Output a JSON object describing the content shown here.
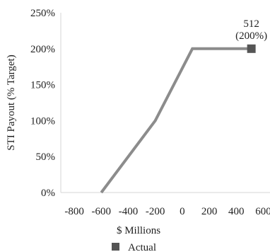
{
  "chart_data": {
    "type": "line",
    "title": "",
    "xlabel": "$ Millions",
    "ylabel": "STI Payout (% Target)",
    "xlim": [
      -900,
      650
    ],
    "ylim": [
      0,
      250
    ],
    "x_ticks": [
      -800,
      -600,
      -400,
      -200,
      0,
      200,
      400,
      600
    ],
    "x_tick_labels": [
      "-800",
      "-600",
      "-400",
      "-200",
      "0",
      "200",
      "400",
      "600"
    ],
    "y_ticks": [
      0,
      50,
      100,
      150,
      200,
      250
    ],
    "y_tick_labels": [
      "0%",
      "50%",
      "100%",
      "150%",
      "200%",
      "250%"
    ],
    "grid": false,
    "legend_position": "bottom",
    "series": [
      {
        "values": [
          {
            "x": -600,
            "y": 0
          },
          {
            "x": -200,
            "y": 100
          },
          {
            "x": 75,
            "y": 200
          },
          {
            "x": 512,
            "y": 200
          }
        ],
        "color": "#8c8c8c"
      },
      {
        "name": "Actual",
        "marker": "square",
        "values": [
          {
            "x": 512,
            "y": 200
          }
        ],
        "color": "#555555"
      }
    ],
    "annotations": [
      {
        "x": 512,
        "y": 200,
        "lines": [
          "512",
          "(200%)"
        ]
      }
    ]
  }
}
